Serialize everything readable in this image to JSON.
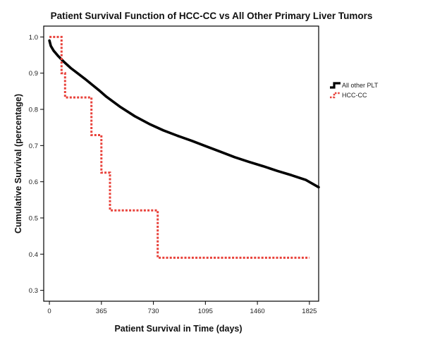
{
  "chart_data": {
    "type": "line",
    "title": "Patient Survival Function of HCC-CC vs All Other Primary Liver Tumors",
    "xlabel": "Patient Survival in Time (days)",
    "ylabel": "Cumulative Survival (percentage)",
    "xlim": [
      -40,
      1890
    ],
    "ylim": [
      0.27,
      1.03
    ],
    "x_ticks": [
      0,
      365,
      730,
      1095,
      1460,
      1825
    ],
    "y_ticks": [
      0.3,
      0.4,
      0.5,
      0.6,
      0.7,
      0.8,
      0.9,
      1.0
    ],
    "x_tick_labels": [
      "0",
      "365",
      "730",
      "1095",
      "1460",
      "1825"
    ],
    "y_tick_labels": [
      "0.3",
      "0.4",
      "0.5",
      "0.6",
      "0.7",
      "0.8",
      "0.9",
      "1.0"
    ],
    "grid": false,
    "legend_position": "right",
    "series": [
      {
        "name": "All other PLT",
        "color": "#000000",
        "style": "solid",
        "step": false,
        "x": [
          0,
          10,
          30,
          60,
          100,
          150,
          200,
          250,
          300,
          350,
          400,
          500,
          600,
          700,
          800,
          900,
          1000,
          1100,
          1200,
          1300,
          1400,
          1500,
          1600,
          1700,
          1800,
          1890
        ],
        "y": [
          0.99,
          0.975,
          0.962,
          0.948,
          0.932,
          0.914,
          0.899,
          0.884,
          0.868,
          0.852,
          0.835,
          0.806,
          0.781,
          0.76,
          0.742,
          0.727,
          0.713,
          0.698,
          0.683,
          0.668,
          0.655,
          0.643,
          0.63,
          0.618,
          0.605,
          0.585
        ]
      },
      {
        "name": "HCC-CC",
        "color": "#e8413a",
        "style": "dotted",
        "step": true,
        "x": [
          0,
          85,
          110,
          295,
          365,
          425,
          480,
          760,
          1825
        ],
        "y": [
          1.0,
          0.9,
          0.833,
          0.729,
          0.625,
          0.521,
          0.521,
          0.39,
          0.39
        ]
      }
    ]
  }
}
